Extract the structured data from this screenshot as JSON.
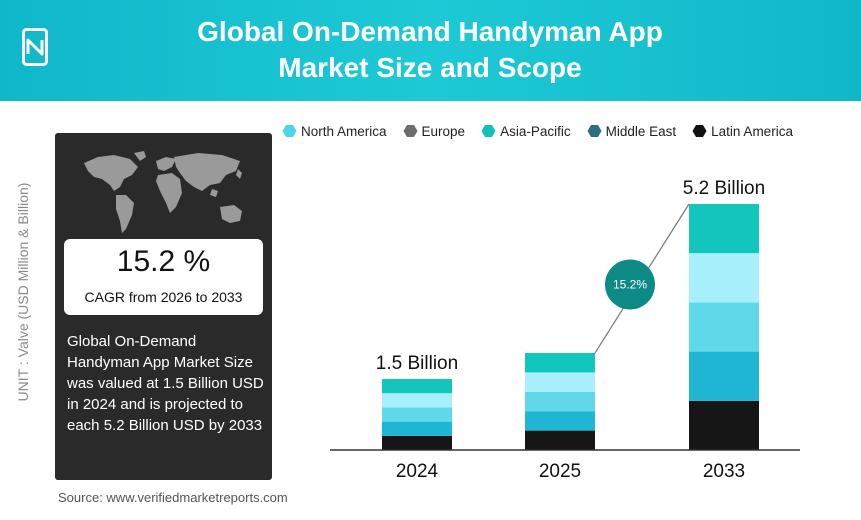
{
  "header": {
    "title_line1": "Global On-Demand Handyman App",
    "title_line2": "Market Size and Scope",
    "logo_icon": "vmr-logo-icon"
  },
  "legend": [
    {
      "label": "North America",
      "color": "#4dd6ea"
    },
    {
      "label": "Europe",
      "color": "#6d6d6d"
    },
    {
      "label": "Asia-Pacific",
      "color": "#12c2b8"
    },
    {
      "label": "Middle East",
      "color": "#2d6e7e"
    },
    {
      "label": "Latin America",
      "color": "#111111"
    }
  ],
  "axis_label": "UNIT : Valve (USD Million & Billion)",
  "panel": {
    "cagr_value": "15.2 %",
    "cagr_label": "CAGR from 2026 to 2033",
    "description": "Global On-Demand Handyman App Market Size was valued at 1.5 Billion USD in 2024 and is projected to each 5.2 Billion USD by 2033"
  },
  "source": "Source: www.verifiedmarketreports.com",
  "chart_data": {
    "type": "bar",
    "categories": [
      "2024",
      "2025",
      "2033"
    ],
    "values": [
      1.5,
      2.05,
      5.2
    ],
    "value_labels": [
      "1.5 Billion",
      "",
      "5.2 Billion"
    ],
    "segments": 5,
    "segment_colors": [
      "#161616",
      "#1fb6d4",
      "#5fd9ea",
      "#a7f0fb",
      "#12c5bd"
    ],
    "cagr_badge": "15.2%",
    "cagr_badge_color": "#0d8a86",
    "ylim": [
      0,
      5.2
    ]
  }
}
